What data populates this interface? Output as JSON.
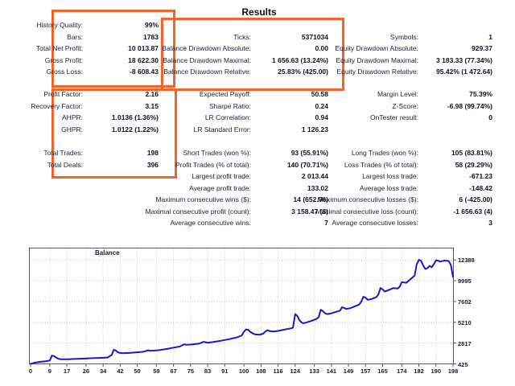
{
  "title": "Results",
  "accent_color": "#f4632a",
  "stats": {
    "rows": [
      {
        "left": {
          "l": "History Quality:",
          "v": "99%"
        },
        "mid": null,
        "right": null
      },
      {
        "left": {
          "l": "Bars:",
          "v": "1783"
        },
        "mid": {
          "l": "Ticks:",
          "v": "5371034"
        },
        "right": {
          "l": "Symbols:",
          "v": "1"
        }
      },
      {
        "left": {
          "l": "Total Net Profit:",
          "v": "10 013.87"
        },
        "mid": {
          "l": "Balance Drawdown Absolute:",
          "v": "0.00"
        },
        "right": {
          "l": "Equity Drawdown Absolute:",
          "v": "929.37"
        }
      },
      {
        "left": {
          "l": "Gross Profit:",
          "v": "18 622.30"
        },
        "mid": {
          "l": "Balance Drawdown Maximal:",
          "v": "1 656.63 (13.24%)"
        },
        "right": {
          "l": "Equity Drawdown Maximal:",
          "v": "3 183.33 (77.34%)"
        }
      },
      {
        "left": {
          "l": "Gross Loss:",
          "v": "-8 608.43"
        },
        "mid": {
          "l": "Balance Drawdown Relative:",
          "v": "25.83% (425.00)"
        },
        "right": {
          "l": "Equity Drawdown Relative:",
          "v": "95.42% (1 472.64)"
        }
      },
      {
        "left": {
          "l": "Profit Factor:",
          "v": "2.16"
        },
        "mid": {
          "l": "Expected Payoff:",
          "v": "50.58"
        },
        "right": {
          "l": "Margin Level:",
          "v": "75.39%"
        }
      },
      {
        "left": {
          "l": "Recovery Factor:",
          "v": "3.15"
        },
        "mid": {
          "l": "Sharpe Ratio:",
          "v": "0.24"
        },
        "right": {
          "l": "Z-Score:",
          "v": "-6.98 (99.74%)"
        }
      },
      {
        "left": {
          "l": "AHPR:",
          "v": "1.0136 (1.36%)"
        },
        "mid": {
          "l": "LR Correlation:",
          "v": "0.94"
        },
        "right": {
          "l": "OnTester result:",
          "v": "0"
        }
      },
      {
        "left": {
          "l": "GHPR:",
          "v": "1.0122 (1.22%)"
        },
        "mid": {
          "l": "LR Standard Error:",
          "v": "1 126.23"
        },
        "right": null
      },
      {
        "left": {
          "l": "Total Trades:",
          "v": "198"
        },
        "mid": {
          "l": "Short Trades (won %):",
          "v": "93 (55.91%)"
        },
        "right": {
          "l": "Long Trades (won %):",
          "v": "105 (83.81%)"
        }
      },
      {
        "left": {
          "l": "Total Deals:",
          "v": "396"
        },
        "mid": {
          "l": "Profit Trades (% of total):",
          "v": "140 (70.71%)"
        },
        "right": {
          "l": "Loss Trades (% of total):",
          "v": "58 (29.29%)"
        }
      },
      {
        "left": null,
        "mid": {
          "l": "Largest profit trade:",
          "v": "2 013.44"
        },
        "right": {
          "l": "Largest loss trade:",
          "v": "-671.23"
        }
      },
      {
        "left": null,
        "mid": {
          "l": "Average profit trade:",
          "v": "133.02"
        },
        "right": {
          "l": "Average loss trade:",
          "v": "-148.42"
        }
      },
      {
        "left": null,
        "mid": {
          "l": "Maximum consecutive wins ($):",
          "v": "14 (652.96)"
        },
        "right": {
          "l": "Maximum consecutive losses ($):",
          "v": "6 (-425.00)"
        }
      },
      {
        "left": null,
        "mid": {
          "l": "Maximal consecutive profit (count):",
          "v": "3 158.47 (8)"
        },
        "right": {
          "l": "Maximal consecutive loss (count):",
          "v": "-1 656.63 (4)"
        }
      },
      {
        "left": null,
        "mid": {
          "l": "Average consecutive wins:",
          "v": "7"
        },
        "right": {
          "l": "Average consecutive losses:",
          "v": "3"
        }
      }
    ]
  },
  "chart_data": {
    "type": "line",
    "title": "Balance",
    "xlabel": "",
    "ylabel": "",
    "grid": true,
    "legend_position": "top-left",
    "xlim": [
      0,
      198
    ],
    "ylim": [
      425,
      13753
    ],
    "x_ticks": [
      0,
      9,
      17,
      26,
      34,
      42,
      50,
      59,
      67,
      75,
      83,
      91,
      100,
      108,
      116,
      124,
      133,
      141,
      149,
      157,
      165,
      174,
      182,
      190,
      198
    ],
    "y_ticks": [
      425,
      2817,
      5210,
      7602,
      9995,
      12388
    ],
    "line_color": "#1a18c8",
    "grid_color": "#c8c8c8",
    "axis_color": "#555555",
    "series": [
      {
        "name": "Balance",
        "points": [
          [
            0,
            425
          ],
          [
            1,
            500
          ],
          [
            2,
            560
          ],
          [
            3,
            610
          ],
          [
            4,
            650
          ],
          [
            5,
            680
          ],
          [
            6,
            700
          ],
          [
            7,
            720
          ],
          [
            8,
            760
          ],
          [
            9,
            820
          ],
          [
            10,
            1380
          ],
          [
            11,
            1320
          ],
          [
            12,
            1150
          ],
          [
            13,
            1020
          ],
          [
            14,
            960
          ],
          [
            15,
            950
          ],
          [
            16,
            955
          ],
          [
            18,
            965
          ],
          [
            20,
            990
          ],
          [
            22,
            1010
          ],
          [
            24,
            1030
          ],
          [
            26,
            1050
          ],
          [
            28,
            1070
          ],
          [
            30,
            1090
          ],
          [
            32,
            1110
          ],
          [
            34,
            1130
          ],
          [
            36,
            1160
          ],
          [
            38,
            1450
          ],
          [
            39,
            2050
          ],
          [
            40,
            1950
          ],
          [
            41,
            1750
          ],
          [
            42,
            1680
          ],
          [
            43,
            1650
          ],
          [
            45,
            1670
          ],
          [
            47,
            1700
          ],
          [
            49,
            1740
          ],
          [
            51,
            1780
          ],
          [
            53,
            1820
          ],
          [
            55,
            1990
          ],
          [
            56,
            1940
          ],
          [
            58,
            1960
          ],
          [
            60,
            2000
          ],
          [
            62,
            2080
          ],
          [
            64,
            2150
          ],
          [
            66,
            2250
          ],
          [
            68,
            2340
          ],
          [
            70,
            2420
          ],
          [
            72,
            2680
          ],
          [
            73,
            2620
          ],
          [
            75,
            2650
          ],
          [
            77,
            2700
          ],
          [
            79,
            2760
          ],
          [
            81,
            2960
          ],
          [
            83,
            2870
          ],
          [
            85,
            2920
          ],
          [
            87,
            3000
          ],
          [
            89,
            3080
          ],
          [
            91,
            3170
          ],
          [
            93,
            3270
          ],
          [
            95,
            3380
          ],
          [
            97,
            3500
          ],
          [
            99,
            3700
          ],
          [
            100,
            4150
          ],
          [
            101,
            4400
          ],
          [
            102,
            4350
          ],
          [
            103,
            4100
          ],
          [
            105,
            3820
          ],
          [
            107,
            3780
          ],
          [
            109,
            3900
          ],
          [
            110,
            4150
          ],
          [
            111,
            4300
          ],
          [
            112,
            4200
          ],
          [
            114,
            4150
          ],
          [
            116,
            4220
          ],
          [
            118,
            4320
          ],
          [
            120,
            4420
          ],
          [
            122,
            4520
          ],
          [
            123,
            4600
          ],
          [
            124,
            6150
          ],
          [
            125,
            5950
          ],
          [
            126,
            5450
          ],
          [
            127,
            5200
          ],
          [
            128,
            5100
          ],
          [
            130,
            5250
          ],
          [
            132,
            5400
          ],
          [
            134,
            5600
          ],
          [
            135,
            5800
          ],
          [
            136,
            6650
          ],
          [
            137,
            6500
          ],
          [
            138,
            6250
          ],
          [
            139,
            6150
          ],
          [
            141,
            6250
          ],
          [
            143,
            6400
          ],
          [
            145,
            6550
          ],
          [
            146,
            6950
          ],
          [
            147,
            6850
          ],
          [
            148,
            6750
          ],
          [
            150,
            6850
          ],
          [
            152,
            7050
          ],
          [
            154,
            7250
          ],
          [
            155,
            7600
          ],
          [
            156,
            8150
          ],
          [
            157,
            8050
          ],
          [
            158,
            7800
          ],
          [
            160,
            7900
          ],
          [
            162,
            8100
          ],
          [
            163,
            8400
          ],
          [
            164,
            9150
          ],
          [
            165,
            9000
          ],
          [
            166,
            8750
          ],
          [
            168,
            8950
          ],
          [
            170,
            9150
          ],
          [
            172,
            9100
          ],
          [
            173,
            9300
          ],
          [
            174,
            9850
          ],
          [
            175,
            9800
          ],
          [
            176,
            9750
          ],
          [
            178,
            10150
          ],
          [
            180,
            10600
          ],
          [
            181,
            11900
          ],
          [
            182,
            12388
          ],
          [
            183,
            12300
          ],
          [
            184,
            11750
          ],
          [
            185,
            11350
          ],
          [
            186,
            11450
          ],
          [
            187,
            11700
          ],
          [
            188,
            11550
          ],
          [
            189,
            11900
          ],
          [
            190,
            12350
          ],
          [
            191,
            12300
          ],
          [
            192,
            12200
          ],
          [
            193,
            12250
          ],
          [
            194,
            12320
          ],
          [
            195,
            12300
          ],
          [
            196,
            12250
          ],
          [
            197,
            11800
          ],
          [
            198,
            10439
          ]
        ]
      }
    ]
  }
}
